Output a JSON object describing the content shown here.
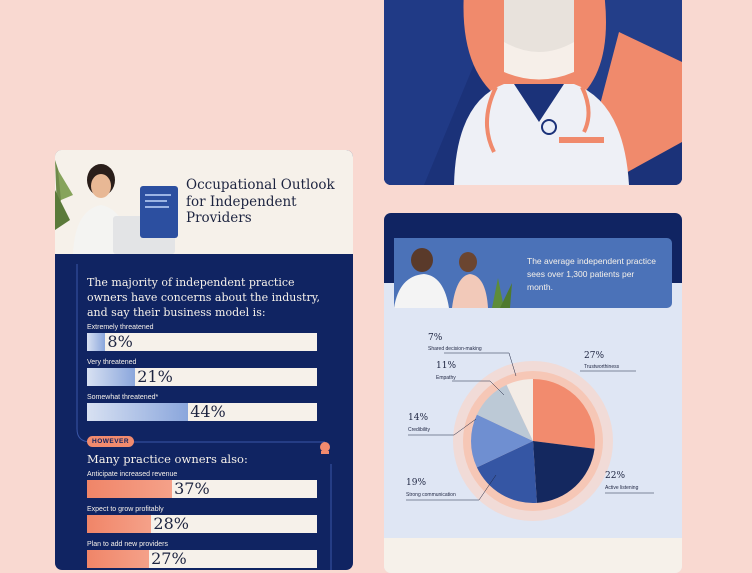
{
  "left_card": {
    "title": "Occupational Outlook for Independent Providers",
    "concerns_text": "The majority of independent practice owners have concerns about the industry, and say their business model is:",
    "threat_bars": [
      {
        "label": "Extremely threatened",
        "value": 8,
        "pct": "8%"
      },
      {
        "label": "Very threatened",
        "value": 21,
        "pct": "21%"
      },
      {
        "label": "Somewhat threatened*",
        "value": 44,
        "pct": "44%"
      }
    ],
    "however_label": "HOWEVER",
    "also_text": "Many practice owners also:",
    "also_bars": [
      {
        "label": "Anticipate increased revenue",
        "value": 37,
        "pct": "37%"
      },
      {
        "label": "Expect to grow profitably",
        "value": 28,
        "pct": "28%"
      },
      {
        "label": "Plan to add new providers",
        "value": 27,
        "pct": "27%"
      }
    ]
  },
  "right_card": {
    "avg_text": "The average independent practice sees over 1,300 patients per month.",
    "pie": [
      {
        "name": "Trustworthiness",
        "pct": "27%",
        "value": 27,
        "color": "#f28b6e"
      },
      {
        "name": "Active listening",
        "pct": "22%",
        "value": 22,
        "color": "#14285f"
      },
      {
        "name": "Strong communication",
        "pct": "19%",
        "value": 19,
        "color": "#3556a4"
      },
      {
        "name": "Credibility",
        "pct": "14%",
        "value": 14,
        "color": "#6f8fd1"
      },
      {
        "name": "Empathy",
        "pct": "11%",
        "value": 11,
        "color": "#bcc9d6"
      },
      {
        "name": "Shared decision-making",
        "pct": "7%",
        "value": 7,
        "color": "#f3ece6"
      }
    ]
  }
}
